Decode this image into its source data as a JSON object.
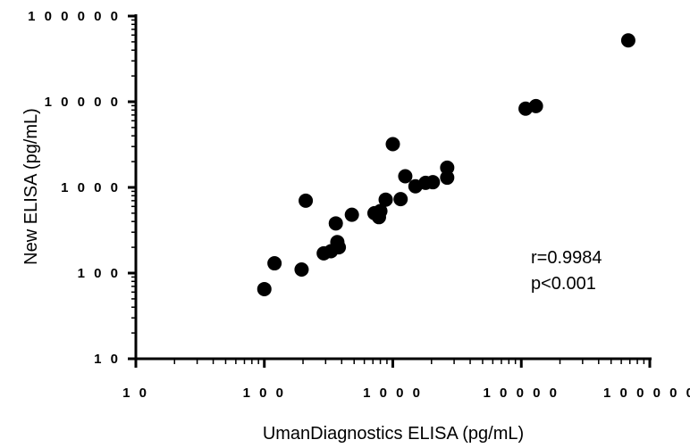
{
  "chart_data": {
    "type": "scatter",
    "xlabel": "UmanDiagnostics ELISA (pg/mL)",
    "ylabel": "New ELISA (pg/mL)",
    "xscale": "log",
    "yscale": "log",
    "xlim": [
      10,
      100000
    ],
    "ylim": [
      10,
      100000
    ],
    "x_ticks": [
      10,
      100,
      1000,
      10000,
      100000
    ],
    "y_ticks": [
      10,
      100,
      1000,
      10000,
      100000
    ],
    "x_tick_labels": [
      "1 0",
      "1 0 0",
      "1 0 0 0",
      "1 0 0 0 0",
      "1 0 0 0 0 0"
    ],
    "y_tick_labels": [
      "1 0",
      "1 0 0",
      "1 0 0 0",
      "1 0 0 0 0",
      "1 0 0 0 0 0"
    ],
    "grid": false,
    "annotations": [
      "r=0.9984",
      "p<0.001"
    ],
    "marker_color": "#000000",
    "points": [
      {
        "x": 100,
        "y": 65
      },
      {
        "x": 120,
        "y": 130
      },
      {
        "x": 195,
        "y": 110
      },
      {
        "x": 210,
        "y": 700
      },
      {
        "x": 290,
        "y": 170
      },
      {
        "x": 330,
        "y": 180
      },
      {
        "x": 360,
        "y": 380
      },
      {
        "x": 370,
        "y": 230
      },
      {
        "x": 380,
        "y": 200
      },
      {
        "x": 480,
        "y": 480
      },
      {
        "x": 720,
        "y": 500
      },
      {
        "x": 780,
        "y": 450
      },
      {
        "x": 800,
        "y": 530
      },
      {
        "x": 880,
        "y": 720
      },
      {
        "x": 1000,
        "y": 3200
      },
      {
        "x": 1150,
        "y": 730
      },
      {
        "x": 1250,
        "y": 1350
      },
      {
        "x": 1500,
        "y": 1030
      },
      {
        "x": 1800,
        "y": 1130
      },
      {
        "x": 2050,
        "y": 1150
      },
      {
        "x": 2650,
        "y": 1700
      },
      {
        "x": 2650,
        "y": 1300
      },
      {
        "x": 10800,
        "y": 8300
      },
      {
        "x": 13000,
        "y": 8900
      },
      {
        "x": 68000,
        "y": 52000
      }
    ]
  }
}
